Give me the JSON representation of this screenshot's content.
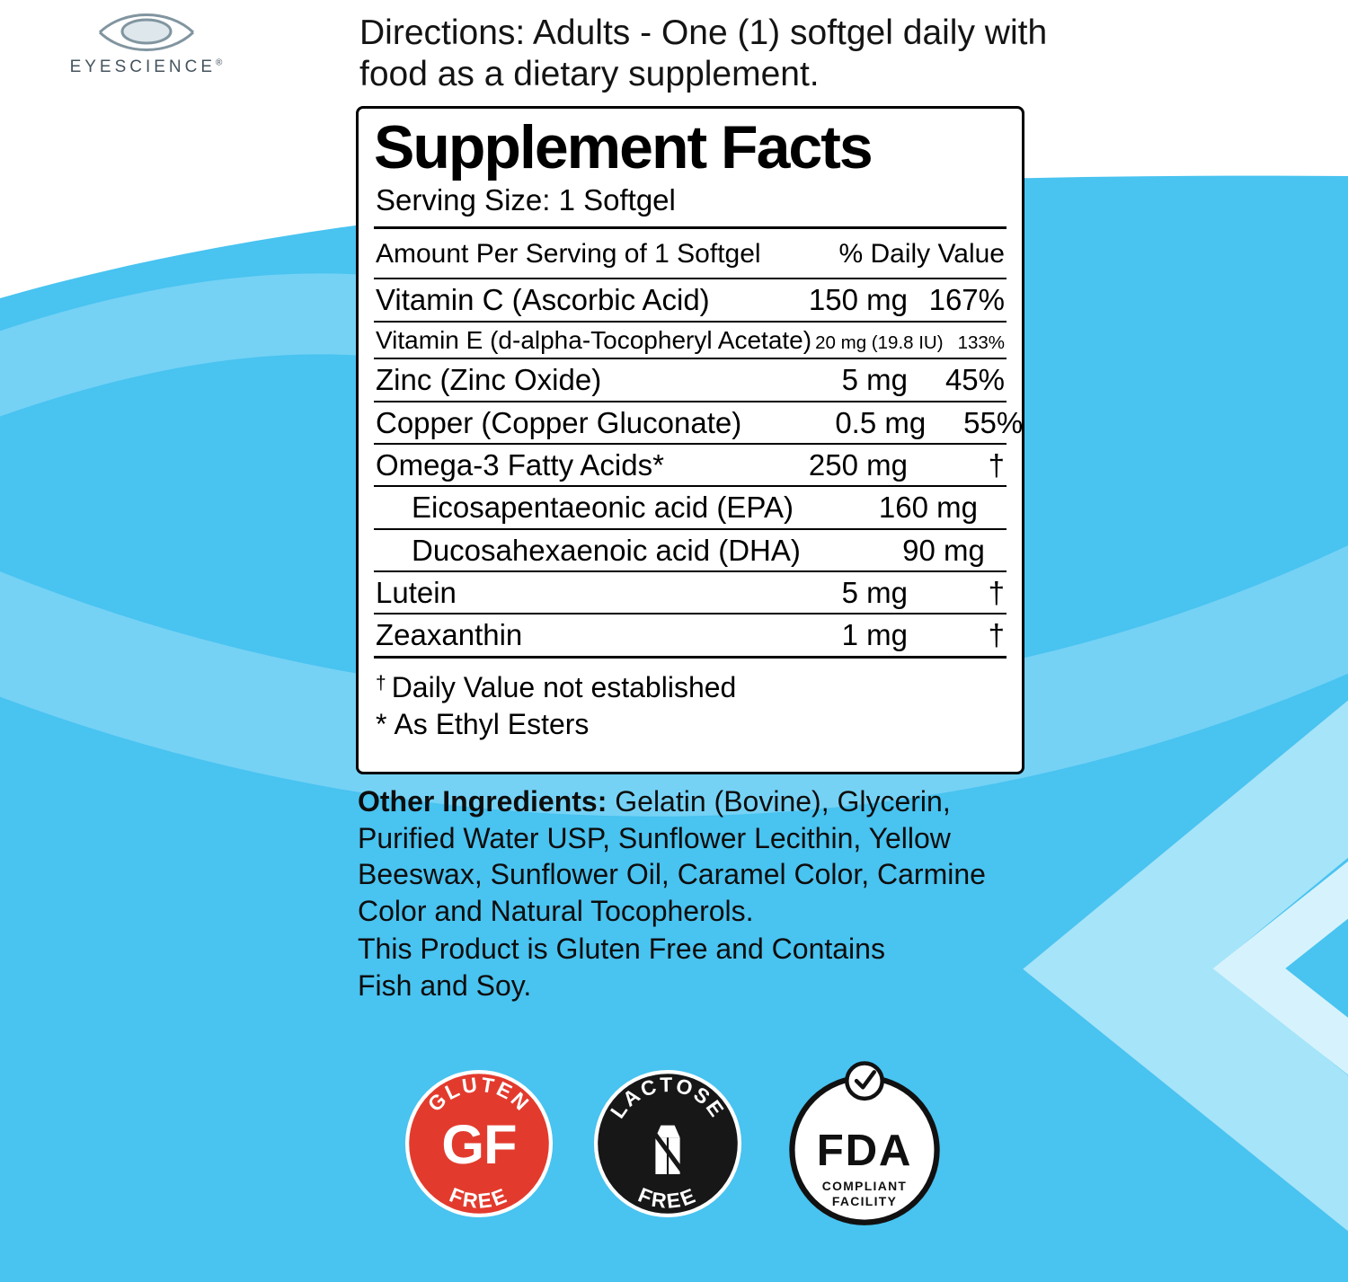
{
  "colors": {
    "background_blue": "#49c3f0",
    "swoosh_light": "#75d2f5",
    "swoosh_lighter": "#a6e4fa",
    "swoosh_bright": "#d6f3fd",
    "badge_red": "#e23b2e",
    "badge_black": "#171717",
    "text_dark": "#111111"
  },
  "brand": {
    "name": "EYESCIENCE",
    "registered": "®"
  },
  "directions": "Directions: Adults - One (1) softgel daily with food as a dietary supplement.",
  "supplement_facts": {
    "title": "Supplement Facts",
    "serving_size": "Serving Size: 1 Softgel",
    "columns": {
      "amount": "Amount Per Serving of 1 Softgel",
      "daily_value": "% Daily Value"
    },
    "rows": [
      {
        "name": "Vitamin C (Ascorbic Acid)",
        "amount": "150 mg",
        "dv": "167%"
      },
      {
        "name": "Vitamin E (d-alpha-Tocopheryl Acetate)",
        "amount": "20 mg (19.8 IU)",
        "dv": "133%",
        "small": true
      },
      {
        "name": "Zinc (Zinc Oxide)",
        "amount": "5 mg",
        "dv": "45%"
      },
      {
        "name": "Copper (Copper Gluconate)",
        "amount": "0.5 mg",
        "dv": "55%"
      },
      {
        "name": "Omega-3 Fatty Acids*",
        "amount": "250 mg",
        "dv": "†"
      },
      {
        "name": "Eicosapentaeonic acid (EPA)",
        "amount": "160 mg",
        "dv": "†",
        "indent": true
      },
      {
        "name": "Ducosahexaenoic acid (DHA)",
        "amount": "90 mg",
        "dv": "†",
        "indent": true
      },
      {
        "name": "Lutein",
        "amount": "5 mg",
        "dv": "†"
      },
      {
        "name": "Zeaxanthin",
        "amount": "1 mg",
        "dv": "†"
      }
    ],
    "footnotes": [
      {
        "symbol": "†",
        "text": "Daily Value not established"
      },
      {
        "symbol": "*",
        "text": "As Ethyl Esters"
      }
    ]
  },
  "other_ingredients": {
    "label": "Other Ingredients:",
    "text": " Gelatin (Bovine), Glycerin, Purified Water USP, Sunflower Lecithin, Yellow Beeswax, Sunflower Oil, Caramel Color, Carmine Color and Natural Tocopherols."
  },
  "allergen_statement": "This Product is Gluten Free and Contains Fish and Soy.",
  "badges": {
    "gluten_free": {
      "top": "GLUTEN",
      "center": "GF",
      "bottom": "FREE"
    },
    "lactose_free": {
      "top": "LACTOSE",
      "bottom": "FREE"
    },
    "fda": {
      "title": "FDA",
      "line1": "COMPLIANT",
      "line2": "FACILITY"
    }
  }
}
